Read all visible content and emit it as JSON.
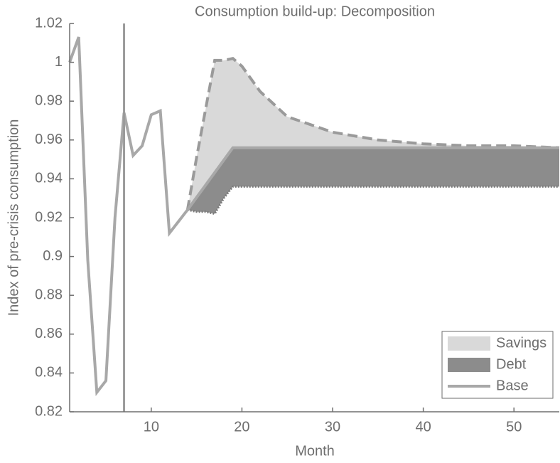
{
  "chart_data": {
    "type": "line-area",
    "title": "Consumption build-up: Decomposition",
    "x_label": "Month",
    "y_label": "Index of pre-crisis consumption",
    "x": [
      1,
      2,
      3,
      4,
      5,
      6,
      7,
      8,
      9,
      10,
      11,
      12,
      13,
      14,
      15,
      16,
      17,
      18,
      19,
      20,
      22,
      25,
      30,
      35,
      40,
      45,
      50,
      55
    ],
    "series": [
      {
        "name": "Savings",
        "color": "#d9d9d9",
        "line_color": "#9a9a9a",
        "values": [
          null,
          null,
          null,
          null,
          null,
          null,
          null,
          null,
          null,
          null,
          null,
          null,
          null,
          0.924,
          0.951,
          0.976,
          1.001,
          1.001,
          1.002,
          0.998,
          0.985,
          0.972,
          0.964,
          0.96,
          0.958,
          0.957,
          0.957,
          0.956
        ]
      },
      {
        "name": "Debt",
        "color": "#8c8c8c",
        "line_color": "#7a7a7a",
        "values": [
          null,
          null,
          null,
          null,
          null,
          null,
          null,
          null,
          null,
          null,
          null,
          null,
          null,
          0.924,
          0.923,
          0.923,
          0.922,
          0.93,
          0.936,
          0.936,
          0.936,
          0.936,
          0.936,
          0.936,
          0.936,
          0.936,
          0.936,
          0.936
        ]
      },
      {
        "name": "Base",
        "color": "#a8a8a8",
        "values": [
          1.0,
          1.013,
          0.898,
          0.83,
          0.836,
          0.92,
          0.974,
          0.952,
          0.957,
          0.973,
          0.975,
          0.912,
          0.918,
          0.924,
          0.9304,
          0.9368,
          0.9432,
          0.9496,
          0.956,
          0.956,
          0.956,
          0.956,
          0.956,
          0.956,
          0.956,
          0.956,
          0.956,
          0.956
        ]
      }
    ],
    "vline": 7,
    "xlim": [
      1,
      55
    ],
    "xticks": [
      10,
      20,
      30,
      40,
      50
    ],
    "ylim": [
      0.82,
      1.02
    ],
    "yticks": [
      0.82,
      0.84,
      0.86,
      0.88,
      0.9,
      0.92,
      0.94,
      0.96,
      0.98,
      1,
      1.02
    ],
    "legend": "lower right"
  }
}
